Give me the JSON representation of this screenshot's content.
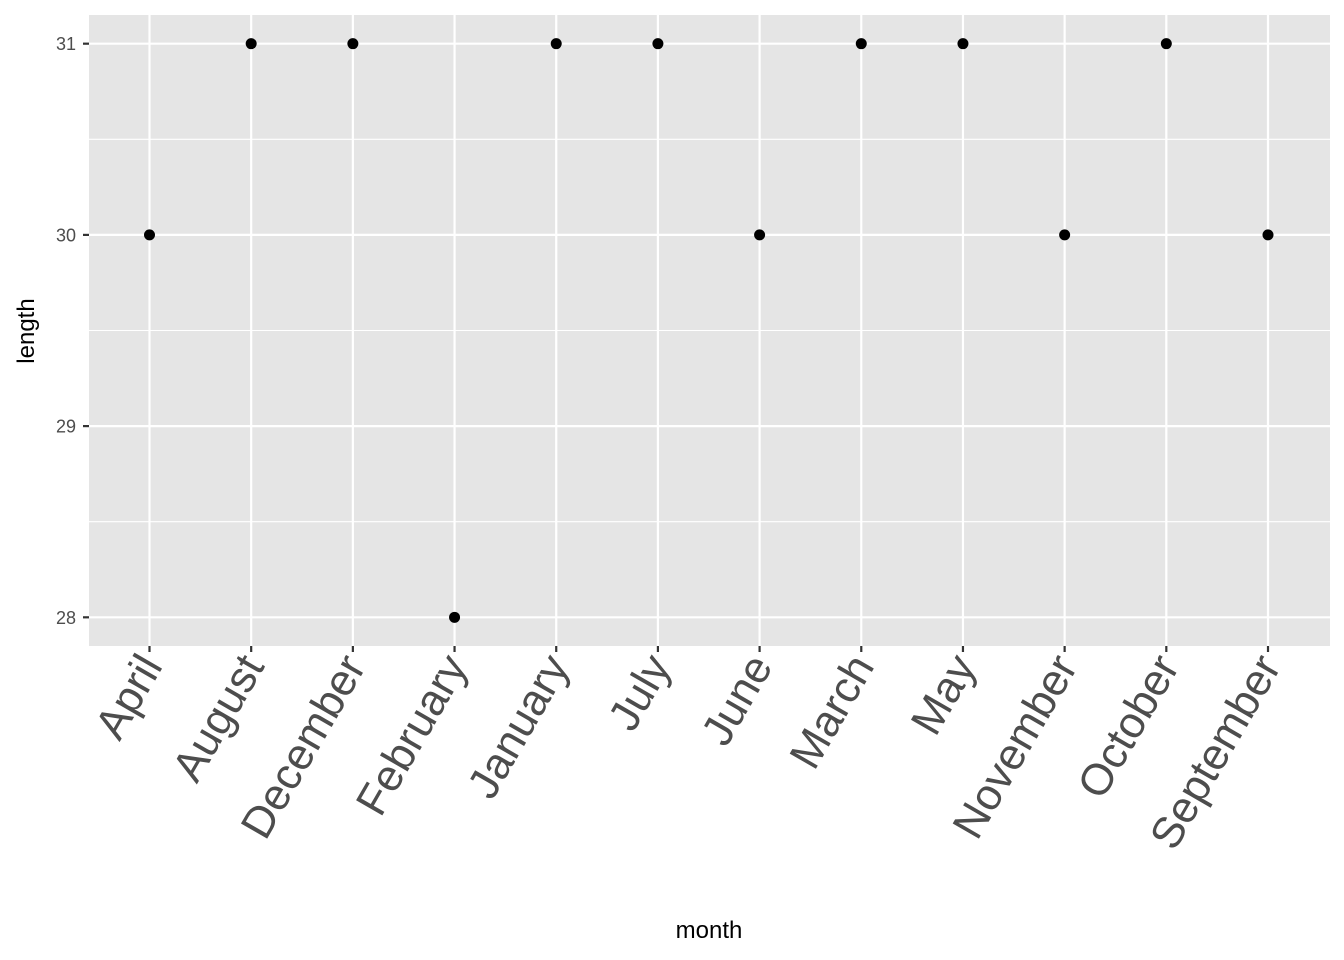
{
  "chart_data": {
    "type": "scatter",
    "xlabel": "month",
    "ylabel": "length",
    "categories": [
      "April",
      "August",
      "December",
      "February",
      "January",
      "July",
      "June",
      "March",
      "May",
      "November",
      "October",
      "September"
    ],
    "series": [
      {
        "values": [
          30,
          31,
          31,
          28,
          31,
          31,
          30,
          31,
          31,
          30,
          31,
          30
        ]
      }
    ],
    "y_ticks": [
      28,
      29,
      30,
      31
    ],
    "ylim": [
      27.85,
      31.15
    ],
    "grid": true,
    "legend": "none"
  },
  "colors": {
    "panel_background": "#e5e5e5",
    "grid_line": "#ffffff",
    "point": "#000000",
    "tick_text": "#4d4d4d",
    "tick_mark": "#333333"
  }
}
